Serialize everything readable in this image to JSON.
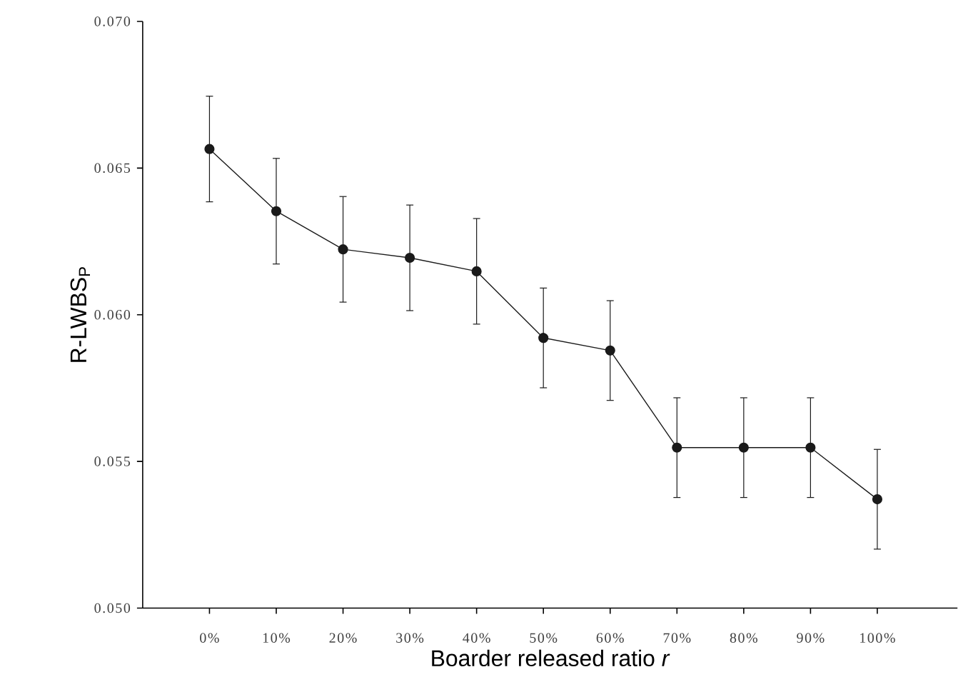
{
  "chart_data": {
    "type": "line",
    "xlabel": "Boarder released ratio *r*",
    "ylabel": "R-LWBS$_{P}$",
    "categories": [
      "0%",
      "10%",
      "20%",
      "30%",
      "40%",
      "50%",
      "60%",
      "70%",
      "80%",
      "90%",
      "100%"
    ],
    "series": [
      {
        "color": "#1a1a1a",
        "values": [
          0.06565,
          0.06353,
          0.06223,
          0.06194,
          0.06148,
          0.05921,
          0.05878,
          0.05547,
          0.05547,
          0.05547,
          0.05371
        ],
        "errors": [
          0.0018,
          0.0018,
          0.0018,
          0.0018,
          0.0018,
          0.0017,
          0.0017,
          0.0017,
          0.0017,
          0.0017,
          0.0017
        ]
      }
    ],
    "ylim": [
      0.05,
      0.07
    ],
    "yticks": [
      {
        "value": 0.05,
        "label": "0.050"
      },
      {
        "value": 0.055,
        "label": "0.055"
      },
      {
        "value": 0.06,
        "label": "0.060"
      },
      {
        "value": 0.065,
        "label": "0.065"
      },
      {
        "value": 0.07,
        "label": "0.070"
      }
    ],
    "marker": "circle",
    "line_style": "solid"
  }
}
